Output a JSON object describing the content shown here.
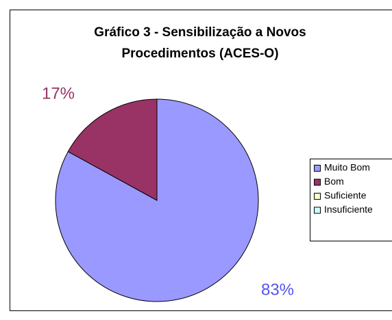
{
  "chart_data": {
    "type": "pie",
    "title": [
      "Gráfico 3 - Sensibilização a Novos",
      "Procedimentos (ACES-O)"
    ],
    "categories": [
      "Muito Bom",
      "Bom",
      "Suficiente",
      "Insuficiente"
    ],
    "values": [
      83,
      17,
      0,
      0
    ],
    "value_labels": [
      "83%",
      "17%",
      null,
      null
    ],
    "colors": [
      "#9999ff",
      "#993366",
      "#ffffcc",
      "#ccffff"
    ],
    "label_colors": [
      "#5555ee",
      "#993366",
      null,
      null
    ],
    "legend": "right"
  }
}
